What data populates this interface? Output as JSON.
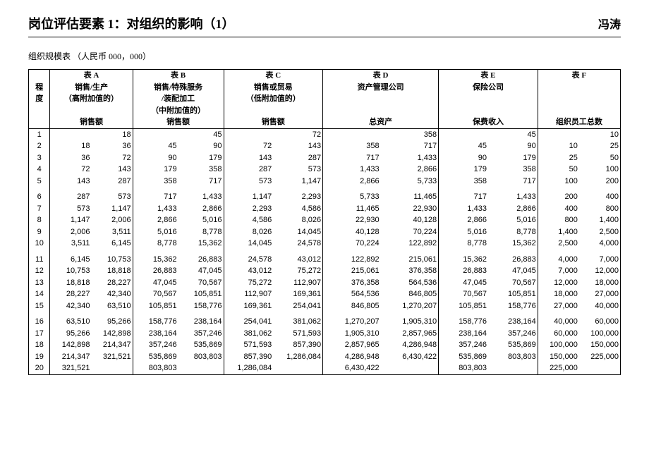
{
  "header": {
    "title": "岗位评估要素 1：对组织的影响（1）",
    "author": "冯涛"
  },
  "subtitle": "组织规模表 （人民币 000，000）",
  "table": {
    "level_label_1": "程",
    "level_label_2": "度",
    "groups": [
      {
        "name": "表 A",
        "line1": "销售/生产",
        "line2": "（高附加值的）",
        "line3": "",
        "metric": "销售额"
      },
      {
        "name": "表 B",
        "line1": "销售/特殊服务",
        "line2": "/装配加工",
        "line3": "（中附加值的）",
        "metric": "销售额"
      },
      {
        "name": "表 C",
        "line1": "销售或贸易",
        "line2": "（低附加值的）",
        "line3": "",
        "metric": "销售额"
      },
      {
        "name": "表 D",
        "line1": "资产管理公司",
        "line2": "",
        "line3": "",
        "metric": "总资产"
      },
      {
        "name": "表 E",
        "line1": "保险公司",
        "line2": "",
        "line3": "",
        "metric": "保费收入"
      },
      {
        "name": "表 F",
        "line1": "",
        "line2": "",
        "line3": "",
        "metric": "组织员工总数"
      }
    ],
    "blocks": [
      [
        {
          "n": "1",
          "v": [
            "",
            "18",
            "",
            "45",
            "",
            "72",
            "",
            "358",
            "",
            "45",
            "",
            "10"
          ]
        },
        {
          "n": "2",
          "v": [
            "18",
            "36",
            "45",
            "90",
            "72",
            "143",
            "358",
            "717",
            "45",
            "90",
            "10",
            "25"
          ]
        },
        {
          "n": "3",
          "v": [
            "36",
            "72",
            "90",
            "179",
            "143",
            "287",
            "717",
            "1,433",
            "90",
            "179",
            "25",
            "50"
          ]
        },
        {
          "n": "4",
          "v": [
            "72",
            "143",
            "179",
            "358",
            "287",
            "573",
            "1,433",
            "2,866",
            "179",
            "358",
            "50",
            "100"
          ]
        },
        {
          "n": "5",
          "v": [
            "143",
            "287",
            "358",
            "717",
            "573",
            "1,147",
            "2,866",
            "5,733",
            "358",
            "717",
            "100",
            "200"
          ]
        }
      ],
      [
        {
          "n": "6",
          "v": [
            "287",
            "573",
            "717",
            "1,433",
            "1,147",
            "2,293",
            "5,733",
            "11,465",
            "717",
            "1,433",
            "200",
            "400"
          ]
        },
        {
          "n": "7",
          "v": [
            "573",
            "1,147",
            "1,433",
            "2,866",
            "2,293",
            "4,586",
            "11,465",
            "22,930",
            "1,433",
            "2,866",
            "400",
            "800"
          ]
        },
        {
          "n": "8",
          "v": [
            "1,147",
            "2,006",
            "2,866",
            "5,016",
            "4,586",
            "8,026",
            "22,930",
            "40,128",
            "2,866",
            "5,016",
            "800",
            "1,400"
          ]
        },
        {
          "n": "9",
          "v": [
            "2,006",
            "3,511",
            "5,016",
            "8,778",
            "8,026",
            "14,045",
            "40,128",
            "70,224",
            "5,016",
            "8,778",
            "1,400",
            "2,500"
          ]
        },
        {
          "n": "10",
          "v": [
            "3,511",
            "6,145",
            "8,778",
            "15,362",
            "14,045",
            "24,578",
            "70,224",
            "122,892",
            "8,778",
            "15,362",
            "2,500",
            "4,000"
          ]
        }
      ],
      [
        {
          "n": "11",
          "v": [
            "6,145",
            "10,753",
            "15,362",
            "26,883",
            "24,578",
            "43,012",
            "122,892",
            "215,061",
            "15,362",
            "26,883",
            "4,000",
            "7,000"
          ]
        },
        {
          "n": "12",
          "v": [
            "10,753",
            "18,818",
            "26,883",
            "47,045",
            "43,012",
            "75,272",
            "215,061",
            "376,358",
            "26,883",
            "47,045",
            "7,000",
            "12,000"
          ]
        },
        {
          "n": "13",
          "v": [
            "18,818",
            "28,227",
            "47,045",
            "70,567",
            "75,272",
            "112,907",
            "376,358",
            "564,536",
            "47,045",
            "70,567",
            "12,000",
            "18,000"
          ]
        },
        {
          "n": "14",
          "v": [
            "28,227",
            "42,340",
            "70,567",
            "105,851",
            "112,907",
            "169,361",
            "564,536",
            "846,805",
            "70,567",
            "105,851",
            "18,000",
            "27,000"
          ]
        },
        {
          "n": "15",
          "v": [
            "42,340",
            "63,510",
            "105,851",
            "158,776",
            "169,361",
            "254,041",
            "846,805",
            "1,270,207",
            "105,851",
            "158,776",
            "27,000",
            "40,000"
          ]
        }
      ],
      [
        {
          "n": "16",
          "v": [
            "63,510",
            "95,266",
            "158,776",
            "238,164",
            "254,041",
            "381,062",
            "1,270,207",
            "1,905,310",
            "158,776",
            "238,164",
            "40,000",
            "60,000"
          ]
        },
        {
          "n": "17",
          "v": [
            "95,266",
            "142,898",
            "238,164",
            "357,246",
            "381,062",
            "571,593",
            "1,905,310",
            "2,857,965",
            "238,164",
            "357,246",
            "60,000",
            "100,000"
          ]
        },
        {
          "n": "18",
          "v": [
            "142,898",
            "214,347",
            "357,246",
            "535,869",
            "571,593",
            "857,390",
            "2,857,965",
            "4,286,948",
            "357,246",
            "535,869",
            "100,000",
            "150,000"
          ]
        },
        {
          "n": "19",
          "v": [
            "214,347",
            "321,521",
            "535,869",
            "803,803",
            "857,390",
            "1,286,084",
            "4,286,948",
            "6,430,422",
            "535,869",
            "803,803",
            "150,000",
            "225,000"
          ]
        },
        {
          "n": "20",
          "v": [
            "321,521",
            "",
            "803,803",
            "",
            "1,286,084",
            "",
            "6,430,422",
            "",
            "803,803",
            "",
            "225,000",
            ""
          ]
        }
      ]
    ]
  },
  "style": {
    "background_color": "#ffffff",
    "text_color": "#000000",
    "border_color": "#000000",
    "title_fontsize": 18,
    "body_fontsize": 11
  }
}
